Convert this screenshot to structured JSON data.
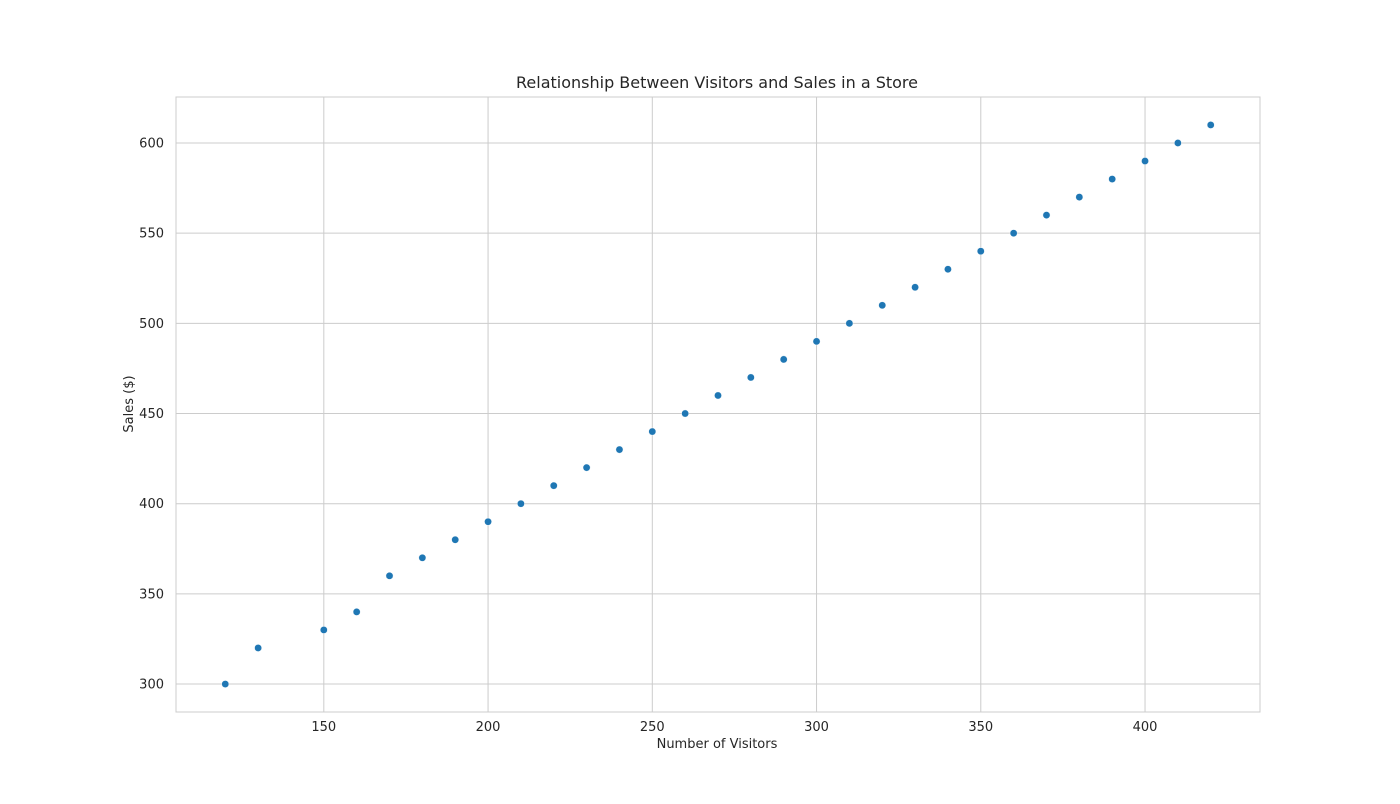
{
  "chart_data": {
    "type": "scatter",
    "title": "Relationship Between Visitors and Sales in a Store",
    "xlabel": "Number of Visitors",
    "ylabel": "Sales ($)",
    "xlim": [
      105,
      435
    ],
    "ylim": [
      284.5,
      625.5
    ],
    "x_ticks": [
      150,
      200,
      250,
      300,
      350,
      400
    ],
    "y_ticks": [
      300,
      350,
      400,
      450,
      500,
      550,
      600
    ],
    "grid": true,
    "legend": "none",
    "colors": {
      "marker": "#1f77b4",
      "grid": "#cccccc",
      "spine": "#cccccc",
      "text": "#262626",
      "background": "#ffffff"
    },
    "points": [
      {
        "x": 120,
        "y": 300
      },
      {
        "x": 130,
        "y": 320
      },
      {
        "x": 150,
        "y": 330
      },
      {
        "x": 160,
        "y": 340
      },
      {
        "x": 170,
        "y": 360
      },
      {
        "x": 180,
        "y": 370
      },
      {
        "x": 190,
        "y": 380
      },
      {
        "x": 200,
        "y": 390
      },
      {
        "x": 210,
        "y": 400
      },
      {
        "x": 220,
        "y": 410
      },
      {
        "x": 230,
        "y": 420
      },
      {
        "x": 240,
        "y": 430
      },
      {
        "x": 250,
        "y": 440
      },
      {
        "x": 260,
        "y": 450
      },
      {
        "x": 270,
        "y": 460
      },
      {
        "x": 280,
        "y": 470
      },
      {
        "x": 290,
        "y": 480
      },
      {
        "x": 300,
        "y": 490
      },
      {
        "x": 310,
        "y": 500
      },
      {
        "x": 320,
        "y": 510
      },
      {
        "x": 330,
        "y": 520
      },
      {
        "x": 340,
        "y": 530
      },
      {
        "x": 350,
        "y": 540
      },
      {
        "x": 360,
        "y": 550
      },
      {
        "x": 370,
        "y": 560
      },
      {
        "x": 380,
        "y": 570
      },
      {
        "x": 390,
        "y": 580
      },
      {
        "x": 400,
        "y": 590
      },
      {
        "x": 410,
        "y": 600
      },
      {
        "x": 420,
        "y": 610
      }
    ]
  }
}
